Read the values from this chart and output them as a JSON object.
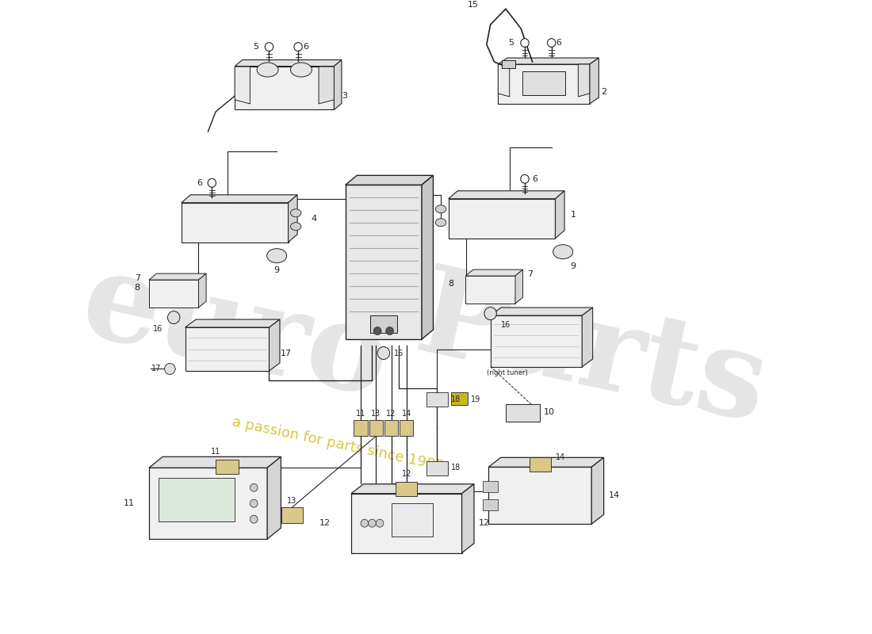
{
  "background_color": "#ffffff",
  "line_color": "#222222",
  "watermark_color1": "#cccccc",
  "watermark_color2": "#c8b800",
  "fig_width": 11.0,
  "fig_height": 8.0,
  "parts": [
    {
      "id": 1,
      "label": "1"
    },
    {
      "id": 2,
      "label": "2"
    },
    {
      "id": 3,
      "label": "3"
    },
    {
      "id": 4,
      "label": "4"
    },
    {
      "id": 5,
      "label": "5"
    },
    {
      "id": 6,
      "label": "6"
    },
    {
      "id": 7,
      "label": "7"
    },
    {
      "id": 8,
      "label": "8"
    },
    {
      "id": 9,
      "label": "9"
    },
    {
      "id": 10,
      "label": "10"
    },
    {
      "id": 11,
      "label": "11"
    },
    {
      "id": 12,
      "label": "12"
    },
    {
      "id": 13,
      "label": "13"
    },
    {
      "id": 14,
      "label": "14"
    },
    {
      "id": 15,
      "label": "15"
    },
    {
      "id": 16,
      "label": "16"
    },
    {
      "id": 17,
      "label": "17"
    },
    {
      "id": 18,
      "label": "18"
    },
    {
      "id": 19,
      "label": "19"
    }
  ]
}
